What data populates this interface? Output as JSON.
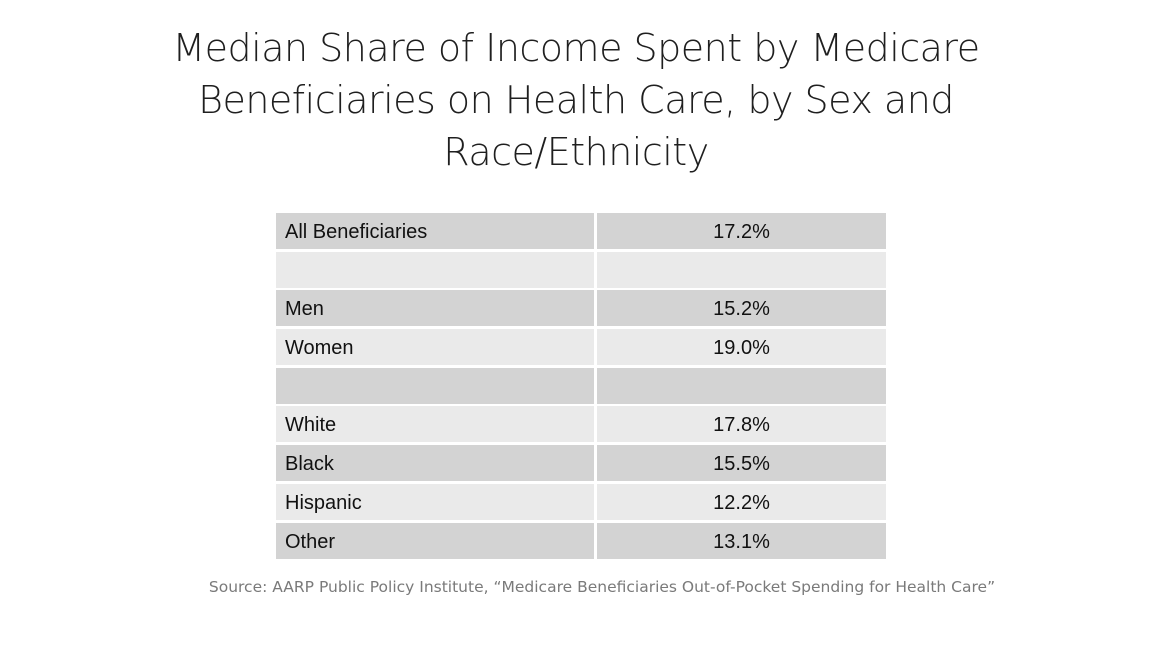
{
  "title_lines": [
    "Median Share of Income Spent by Medicare",
    "Beneficiaries on Health Care, by Sex and",
    "Race/Ethnicity"
  ],
  "chart_data": {
    "type": "table",
    "title": "Median Share of Income Spent by Medicare Beneficiaries on Health Care, by Sex and Race/Ethnicity",
    "rows": [
      {
        "label": "All Beneficiaries",
        "value": "17.2%"
      },
      {
        "label": "",
        "value": ""
      },
      {
        "label": "Men",
        "value": "15.2%"
      },
      {
        "label": "Women",
        "value": "19.0%"
      },
      {
        "label": "",
        "value": ""
      },
      {
        "label": "White",
        "value": "17.8%"
      },
      {
        "label": "Black",
        "value": "15.5%"
      },
      {
        "label": "Hispanic",
        "value": "12.2%"
      },
      {
        "label": "Other",
        "value": "13.1%"
      }
    ],
    "source": "Source: AARP Public Policy Institute, “Medicare Beneficiaries Out-of-Pocket Spending for Health Care”"
  },
  "colors": {
    "row_dark": "#d3d3d3",
    "row_light": "#eaeaea",
    "source_text": "#7a7a7a"
  }
}
